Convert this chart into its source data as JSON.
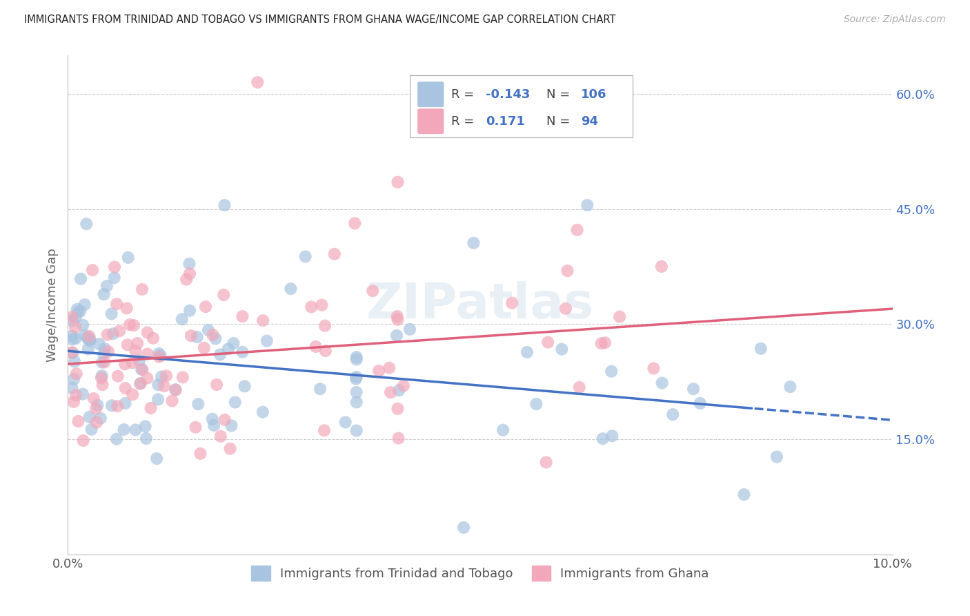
{
  "title": "IMMIGRANTS FROM TRINIDAD AND TOBAGO VS IMMIGRANTS FROM GHANA WAGE/INCOME GAP CORRELATION CHART",
  "source": "Source: ZipAtlas.com",
  "ylabel": "Wage/Income Gap",
  "right_yticks": [
    0.15,
    0.3,
    0.45,
    0.6
  ],
  "right_yticklabels": [
    "15.0%",
    "30.0%",
    "45.0%",
    "60.0%"
  ],
  "xlim": [
    0.0,
    0.1
  ],
  "ylim": [
    0.0,
    0.65
  ],
  "color_blue": "#a8c4e0",
  "color_pink": "#f2a8ba",
  "color_blue_line": "#4472c4",
  "color_pink_line": "#e0607a",
  "watermark": "ZIPatlas",
  "legend_r1": "-0.143",
  "legend_n1": "106",
  "legend_r2": "0.171",
  "legend_n2": "94",
  "n_blue": 106,
  "n_pink": 94,
  "blue_intercept": 0.265,
  "blue_slope": -0.9,
  "pink_intercept": 0.248,
  "pink_slope": 0.72,
  "label_blue": "Immigrants from Trinidad and Tobago",
  "label_pink": "Immigrants from Ghana"
}
